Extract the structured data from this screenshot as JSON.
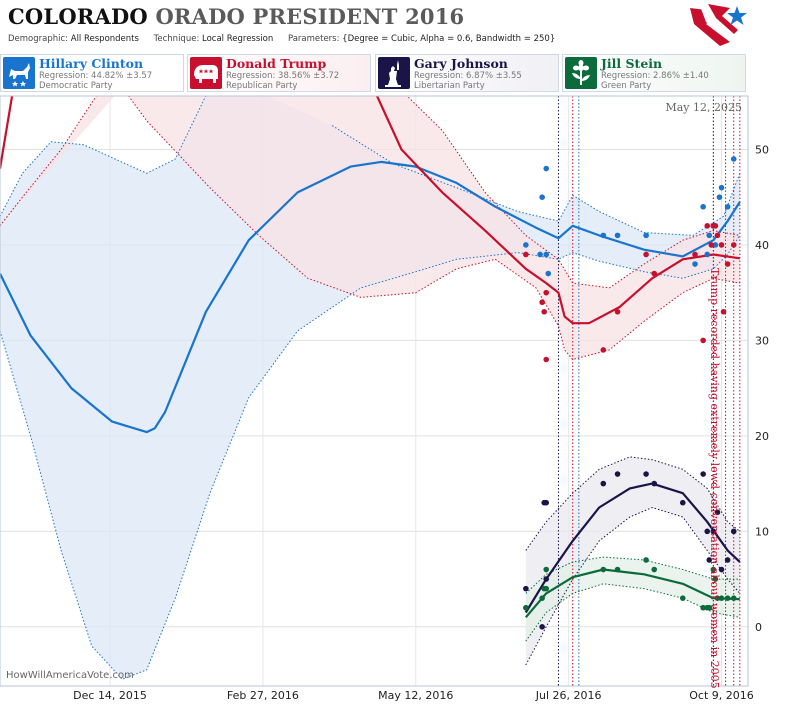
{
  "header": {
    "title_part1": "COLORADO",
    "title_part2": "ORADO PRESIDENT 2016",
    "demographic_label": "Demographic:",
    "demographic_value": "All Respondents",
    "technique_label": "Technique:",
    "technique_value": "Local Regression",
    "parameters_label": "Parameters:",
    "parameters_value": "{Degree = Cubic, Alpha = 0.6, Bandwidth = 250}"
  },
  "legend": [
    {
      "name": "Hillary Clinton",
      "regression": "Regression: 44.82% ±3.57",
      "party": "Democratic Party",
      "color": "#1874cd",
      "icon": "donkey-icon"
    },
    {
      "name": "Donald Trump",
      "regression": "Regression: 38.56% ±3.72",
      "party": "Republican Party",
      "color": "#c8102e",
      "icon": "elephant-icon"
    },
    {
      "name": "Gary Johnson",
      "regression": "Regression: 6.87% ±3.55",
      "party": "Libertarian Party",
      "color": "#1a1448",
      "icon": "liberty-statue-icon"
    },
    {
      "name": "Jill Stein",
      "regression": "Regression: 2.86% ±1.40",
      "party": "Green Party",
      "color": "#0b6b3a",
      "icon": "flower-icon"
    }
  ],
  "chart_data": {
    "type": "line",
    "date_label": "May 12, 2025",
    "watermark": "HowWillAmericaVote.com",
    "annotation": "Trump recorded having extremely lewd conversation about women in 2005",
    "x_ticks": [
      "Dec 14, 2015",
      "Feb 27, 2016",
      "May 12, 2016",
      "Jul 26, 2016",
      "Oct 9, 2016"
    ],
    "y_ticks": [
      0,
      10,
      20,
      30,
      40,
      50
    ],
    "ylim": [
      -6.2,
      55.6
    ],
    "xlim": [
      "2015-10-21",
      "2016-10-22"
    ],
    "grid": true,
    "event_lines": [
      "2016-07-21",
      "2016-07-28",
      "2016-07-31",
      "2016-10-05",
      "2016-10-11",
      "2016-10-15",
      "2016-10-18"
    ],
    "series": [
      {
        "name": "Hillary Clinton",
        "color": "#1874cd",
        "band_color": "#dbe7f6",
        "line": [
          [
            "2015-10-21",
            37
          ],
          [
            "2015-11-05",
            30.5
          ],
          [
            "2015-11-25",
            25
          ],
          [
            "2015-12-15",
            21.5
          ],
          [
            "2016-01-01",
            20.4
          ],
          [
            "2016-01-05",
            20.8
          ],
          [
            "2016-01-10",
            22.5
          ],
          [
            "2016-01-30",
            33
          ],
          [
            "2016-02-20",
            40.5
          ],
          [
            "2016-03-15",
            45.5
          ],
          [
            "2016-04-10",
            48.2
          ],
          [
            "2016-04-25",
            48.7
          ],
          [
            "2016-05-12",
            48.2
          ],
          [
            "2016-06-01",
            46.5
          ],
          [
            "2016-06-20",
            44
          ],
          [
            "2016-07-10",
            41.8
          ],
          [
            "2016-07-21",
            40.7
          ],
          [
            "2016-07-28",
            42
          ],
          [
            "2016-08-10",
            41
          ],
          [
            "2016-09-01",
            39.5
          ],
          [
            "2016-09-20",
            38.8
          ],
          [
            "2016-10-05",
            40.5
          ],
          [
            "2016-10-12",
            42.5
          ],
          [
            "2016-10-18",
            44.5
          ]
        ],
        "upper": [
          [
            "2015-10-21",
            43
          ],
          [
            "2015-11-01",
            47.5
          ],
          [
            "2015-11-15",
            50.8
          ],
          [
            "2015-12-01",
            50.5
          ],
          [
            "2016-01-01",
            47.5
          ],
          [
            "2016-01-15",
            49
          ],
          [
            "2016-02-01",
            56.5
          ],
          [
            "2016-02-20",
            56.5
          ]
        ],
        "upper_right": [
          [
            "2016-04-01",
            52.5
          ],
          [
            "2016-05-01",
            48.5
          ],
          [
            "2016-06-01",
            46
          ],
          [
            "2016-07-01",
            43.5
          ],
          [
            "2016-07-21",
            42.5
          ],
          [
            "2016-07-28",
            45.2
          ],
          [
            "2016-08-10",
            43.5
          ],
          [
            "2016-09-01",
            41.3
          ],
          [
            "2016-09-25",
            41
          ],
          [
            "2016-10-10",
            43
          ],
          [
            "2016-10-18",
            47.5
          ]
        ],
        "lower": [
          [
            "2015-10-21",
            31
          ],
          [
            "2015-11-05",
            20
          ],
          [
            "2015-11-20",
            8
          ],
          [
            "2015-12-05",
            -2
          ],
          [
            "2015-12-20",
            -5.5
          ],
          [
            "2016-01-01",
            -4.5
          ],
          [
            "2016-01-15",
            3
          ],
          [
            "2016-02-01",
            14
          ],
          [
            "2016-02-20",
            24
          ],
          [
            "2016-03-15",
            31
          ],
          [
            "2016-04-15",
            35.5
          ],
          [
            "2016-05-12",
            37.2
          ],
          [
            "2016-06-01",
            38.5
          ],
          [
            "2016-07-01",
            39.2
          ],
          [
            "2016-07-21",
            38.5
          ],
          [
            "2016-07-28",
            39.2
          ],
          [
            "2016-08-10",
            38.3
          ],
          [
            "2016-09-01",
            37.2
          ],
          [
            "2016-09-20",
            36.5
          ],
          [
            "2016-10-05",
            37.5
          ],
          [
            "2016-10-12",
            39
          ],
          [
            "2016-10-18",
            41
          ]
        ],
        "points": [
          [
            "2016-07-05",
            40
          ],
          [
            "2016-07-13",
            45
          ],
          [
            "2016-07-15",
            48
          ],
          [
            "2016-07-12",
            39
          ],
          [
            "2016-07-15",
            39
          ],
          [
            "2016-07-16",
            37
          ],
          [
            "2016-08-12",
            41
          ],
          [
            "2016-08-19",
            41
          ],
          [
            "2016-09-02",
            41
          ],
          [
            "2016-09-26",
            38
          ],
          [
            "2016-09-30",
            44
          ],
          [
            "2016-10-02",
            39
          ],
          [
            "2016-10-05",
            42
          ],
          [
            "2016-10-06",
            40
          ],
          [
            "2016-10-08",
            45
          ],
          [
            "2016-10-09",
            46
          ],
          [
            "2016-10-12",
            44
          ],
          [
            "2016-10-15",
            49
          ],
          [
            "2016-10-03",
            41
          ]
        ]
      },
      {
        "name": "Donald Trump",
        "color": "#c8102e",
        "band_color": "#f8e1e4",
        "line": [
          [
            "2015-10-21",
            48
          ],
          [
            "2015-10-28",
            57
          ],
          [
            "2016-04-20",
            57
          ],
          [
            "2016-05-05",
            50
          ],
          [
            "2016-05-25",
            45.5
          ],
          [
            "2016-06-15",
            41.5
          ],
          [
            "2016-07-05",
            37.5
          ],
          [
            "2016-07-15",
            36
          ],
          [
            "2016-07-21",
            35
          ],
          [
            "2016-07-24",
            32.5
          ],
          [
            "2016-07-28",
            31.8
          ],
          [
            "2016-08-05",
            31.8
          ],
          [
            "2016-08-20",
            33.5
          ],
          [
            "2016-09-05",
            36.5
          ],
          [
            "2016-09-20",
            38.5
          ],
          [
            "2016-10-05",
            39
          ],
          [
            "2016-10-18",
            38.6
          ]
        ],
        "upper": [
          [
            "2015-10-21",
            42
          ],
          [
            "2015-11-01",
            45
          ],
          [
            "2015-11-20",
            50
          ],
          [
            "2015-12-10",
            56.5
          ]
        ],
        "upper_right": [
          [
            "2016-05-01",
            57
          ],
          [
            "2016-05-25",
            52
          ],
          [
            "2016-06-15",
            45.5
          ],
          [
            "2016-07-05",
            41
          ],
          [
            "2016-07-21",
            38.5
          ],
          [
            "2016-07-28",
            36
          ],
          [
            "2016-08-15",
            35.5
          ],
          [
            "2016-09-01",
            38
          ],
          [
            "2016-09-20",
            40.5
          ],
          [
            "2016-10-05",
            41.5
          ],
          [
            "2016-10-18",
            41
          ]
        ],
        "lower": [
          [
            "2015-12-20",
            56.5
          ],
          [
            "2016-01-01",
            53
          ],
          [
            "2016-02-01",
            46
          ],
          [
            "2016-02-25",
            41
          ],
          [
            "2016-03-20",
            36.5
          ],
          [
            "2016-04-15",
            34.5
          ],
          [
            "2016-05-12",
            35
          ],
          [
            "2016-06-01",
            37.5
          ],
          [
            "2016-06-20",
            38.5
          ],
          [
            "2016-07-10",
            35.5
          ],
          [
            "2016-07-21",
            31.5
          ],
          [
            "2016-07-24",
            29
          ],
          [
            "2016-07-28",
            28
          ],
          [
            "2016-08-15",
            29
          ],
          [
            "2016-09-01",
            32
          ],
          [
            "2016-09-20",
            35
          ],
          [
            "2016-10-05",
            36.5
          ],
          [
            "2016-10-18",
            36
          ]
        ],
        "points": [
          [
            "2016-07-05",
            39
          ],
          [
            "2016-07-13",
            34
          ],
          [
            "2016-07-14",
            33
          ],
          [
            "2016-07-15",
            28
          ],
          [
            "2016-07-15",
            35
          ],
          [
            "2016-08-12",
            29
          ],
          [
            "2016-08-19",
            33
          ],
          [
            "2016-09-02",
            39
          ],
          [
            "2016-09-06",
            37
          ],
          [
            "2016-09-26",
            39
          ],
          [
            "2016-09-30",
            30
          ],
          [
            "2016-10-02",
            42
          ],
          [
            "2016-10-04",
            40
          ],
          [
            "2016-10-05",
            42
          ],
          [
            "2016-10-07",
            41
          ],
          [
            "2016-10-09",
            40
          ],
          [
            "2016-10-10",
            33
          ],
          [
            "2016-10-12",
            38
          ],
          [
            "2016-10-15",
            40
          ],
          [
            "2016-10-06",
            42
          ]
        ]
      },
      {
        "name": "Gary Johnson",
        "color": "#1a1448",
        "band_color": "#e8e8ef",
        "line": [
          [
            "2016-07-05",
            1.5
          ],
          [
            "2016-07-15",
            5
          ],
          [
            "2016-07-28",
            9
          ],
          [
            "2016-08-10",
            12.5
          ],
          [
            "2016-08-25",
            14.5
          ],
          [
            "2016-09-05",
            15
          ],
          [
            "2016-09-20",
            14
          ],
          [
            "2016-10-02",
            11
          ],
          [
            "2016-10-12",
            8
          ],
          [
            "2016-10-18",
            6.8
          ]
        ],
        "upper": [
          [
            "2016-07-05",
            8
          ],
          [
            "2016-07-15",
            11
          ],
          [
            "2016-07-28",
            14
          ],
          [
            "2016-08-10",
            16.5
          ],
          [
            "2016-08-25",
            17.8
          ],
          [
            "2016-09-05",
            17.5
          ],
          [
            "2016-09-20",
            16.5
          ],
          [
            "2016-10-02",
            14.5
          ],
          [
            "2016-10-12",
            11
          ],
          [
            "2016-10-18",
            10
          ]
        ],
        "lower": [
          [
            "2016-07-05",
            -4
          ],
          [
            "2016-07-15",
            0
          ],
          [
            "2016-07-28",
            5
          ],
          [
            "2016-08-10",
            9
          ],
          [
            "2016-08-25",
            11.5
          ],
          [
            "2016-09-05",
            12.5
          ],
          [
            "2016-09-20",
            11.5
          ],
          [
            "2016-10-02",
            8
          ],
          [
            "2016-10-12",
            5
          ],
          [
            "2016-10-18",
            3.5
          ]
        ],
        "points": [
          [
            "2016-07-05",
            4
          ],
          [
            "2016-07-13",
            0
          ],
          [
            "2016-07-14",
            13
          ],
          [
            "2016-07-15",
            13
          ],
          [
            "2016-07-15",
            5
          ],
          [
            "2016-08-12",
            15
          ],
          [
            "2016-08-19",
            16
          ],
          [
            "2016-09-02",
            16
          ],
          [
            "2016-09-06",
            15
          ],
          [
            "2016-09-20",
            13
          ],
          [
            "2016-09-30",
            16
          ],
          [
            "2016-10-02",
            10
          ],
          [
            "2016-10-03",
            7
          ],
          [
            "2016-10-05",
            10
          ],
          [
            "2016-10-07",
            12
          ],
          [
            "2016-10-09",
            6
          ],
          [
            "2016-10-12",
            7
          ],
          [
            "2016-10-15",
            10
          ]
        ]
      },
      {
        "name": "Jill Stein",
        "color": "#0b6b3a",
        "band_color": "#e3efe7",
        "line": [
          [
            "2016-07-05",
            1
          ],
          [
            "2016-07-15",
            3.5
          ],
          [
            "2016-07-28",
            5.2
          ],
          [
            "2016-08-12",
            6
          ],
          [
            "2016-09-01",
            5.5
          ],
          [
            "2016-09-20",
            4.5
          ],
          [
            "2016-10-05",
            3
          ],
          [
            "2016-10-18",
            2.9
          ]
        ],
        "upper": [
          [
            "2016-07-05",
            3.5
          ],
          [
            "2016-07-15",
            5.5
          ],
          [
            "2016-07-28",
            6.8
          ],
          [
            "2016-08-12",
            7.3
          ],
          [
            "2016-09-01",
            7
          ],
          [
            "2016-09-20",
            6
          ],
          [
            "2016-10-05",
            5
          ],
          [
            "2016-10-18",
            5
          ]
        ],
        "lower": [
          [
            "2016-07-05",
            -1.5
          ],
          [
            "2016-07-15",
            1.5
          ],
          [
            "2016-07-28",
            3.5
          ],
          [
            "2016-08-12",
            4.5
          ],
          [
            "2016-09-01",
            4
          ],
          [
            "2016-09-20",
            3
          ],
          [
            "2016-10-05",
            1.5
          ],
          [
            "2016-10-18",
            1
          ]
        ],
        "points": [
          [
            "2016-07-05",
            2
          ],
          [
            "2016-07-13",
            3
          ],
          [
            "2016-07-14",
            4
          ],
          [
            "2016-07-15",
            6
          ],
          [
            "2016-07-15",
            4
          ],
          [
            "2016-08-12",
            6
          ],
          [
            "2016-08-19",
            6
          ],
          [
            "2016-09-02",
            7
          ],
          [
            "2016-09-06",
            6
          ],
          [
            "2016-09-20",
            3
          ],
          [
            "2016-09-30",
            2
          ],
          [
            "2016-10-02",
            2
          ],
          [
            "2016-10-03",
            2
          ],
          [
            "2016-10-05",
            6
          ],
          [
            "2016-10-07",
            3
          ],
          [
            "2016-10-09",
            3
          ],
          [
            "2016-10-12",
            3
          ],
          [
            "2016-10-15",
            3
          ],
          [
            "2016-10-06",
            5
          ]
        ]
      }
    ]
  }
}
